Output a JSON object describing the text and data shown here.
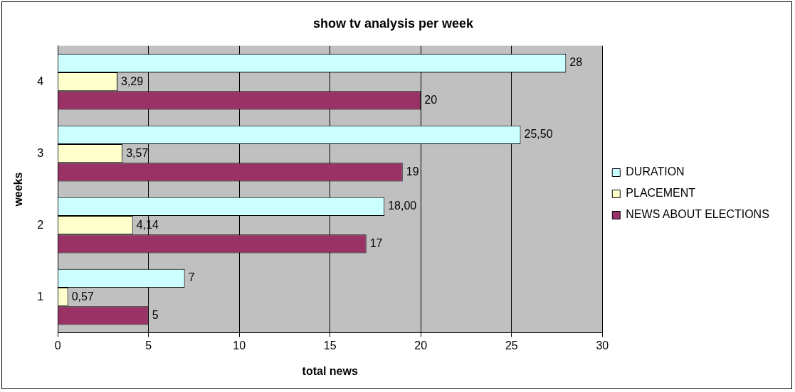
{
  "chart_data": {
    "type": "bar",
    "orientation": "horizontal",
    "title": "show tv analysis per week",
    "xlabel": "total news",
    "ylabel": "weeks",
    "categories": [
      "4",
      "3",
      "2",
      "1"
    ],
    "series": [
      {
        "name": "DURATION",
        "color": "#ccffff",
        "values": [
          28,
          25.5,
          18,
          7
        ],
        "value_labels": [
          "28",
          "25,50",
          "18,00",
          "7"
        ]
      },
      {
        "name": "PLACEMENT",
        "color": "#ffffcc",
        "values": [
          3.29,
          3.57,
          4.14,
          0.57
        ],
        "value_labels": [
          "3,29",
          "3,57",
          "4,14",
          "0,57"
        ]
      },
      {
        "name": "NEWS ABOUT ELECTIONS",
        "color": "#993366",
        "values": [
          20,
          19,
          17,
          5
        ],
        "value_labels": [
          "20",
          "19",
          "17",
          "5"
        ]
      }
    ],
    "xlim": [
      0,
      30
    ],
    "xticks": [
      0,
      5,
      10,
      15,
      20,
      25,
      30
    ],
    "grid": "x",
    "legend": "right"
  }
}
